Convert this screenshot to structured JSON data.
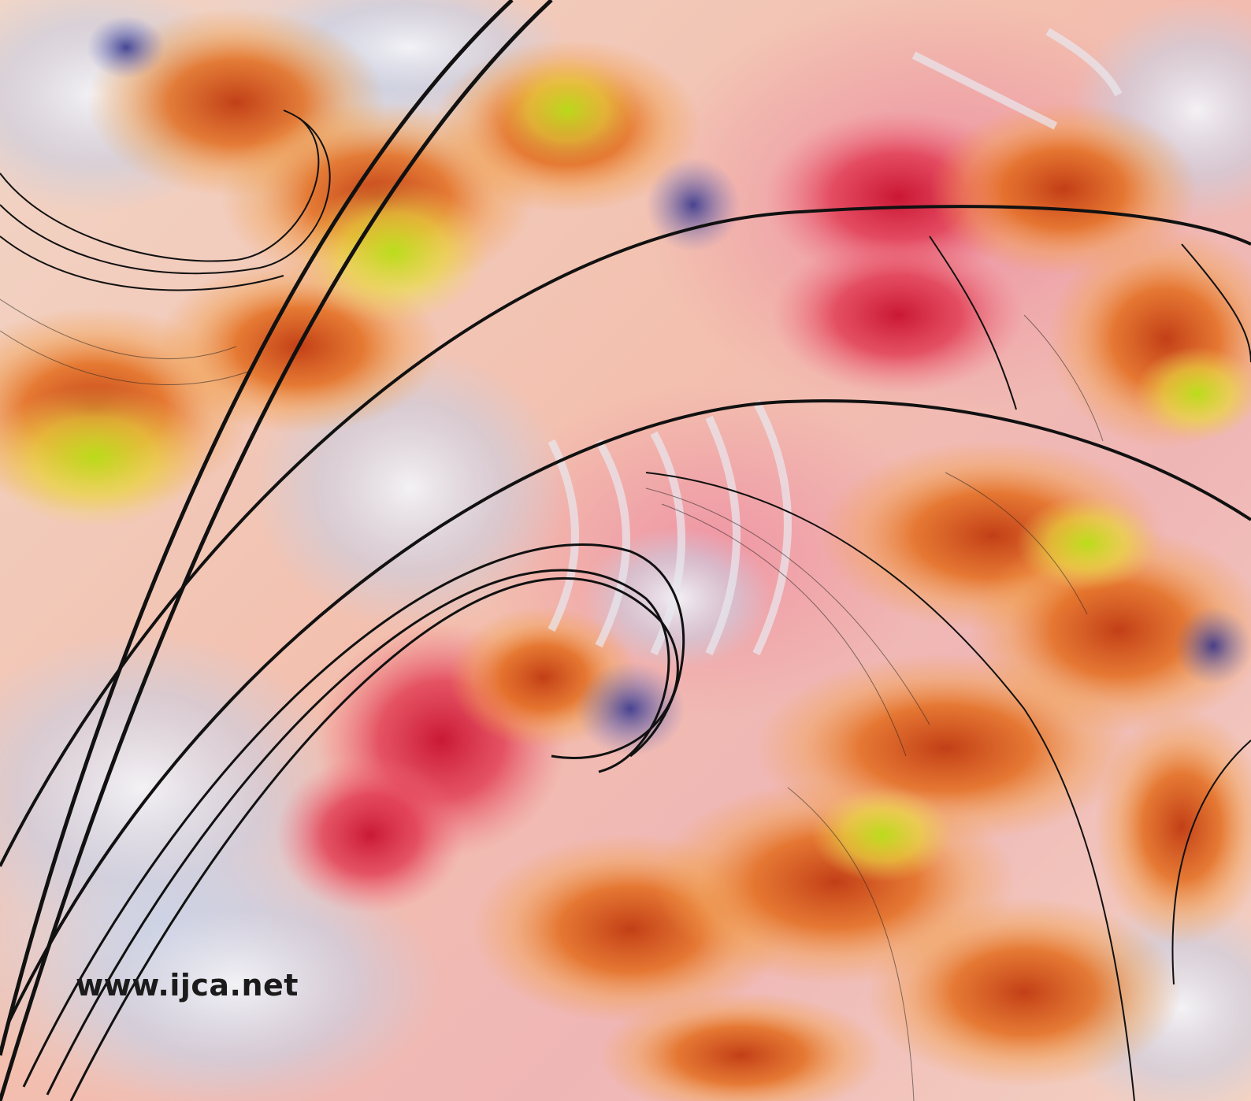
{
  "cover": {
    "url_text": "www.ijca.net"
  },
  "colors": {
    "background_peach": "#f3bfae",
    "background_pink": "#ec8fa2",
    "frost_blue": "#d6dbe9",
    "fractal_orange": "#e06a1e",
    "fractal_red": "#d8203c",
    "fractal_yellow_green": "#c8e020",
    "curve_black": "#111111",
    "text_dark": "#1b1b1b"
  }
}
